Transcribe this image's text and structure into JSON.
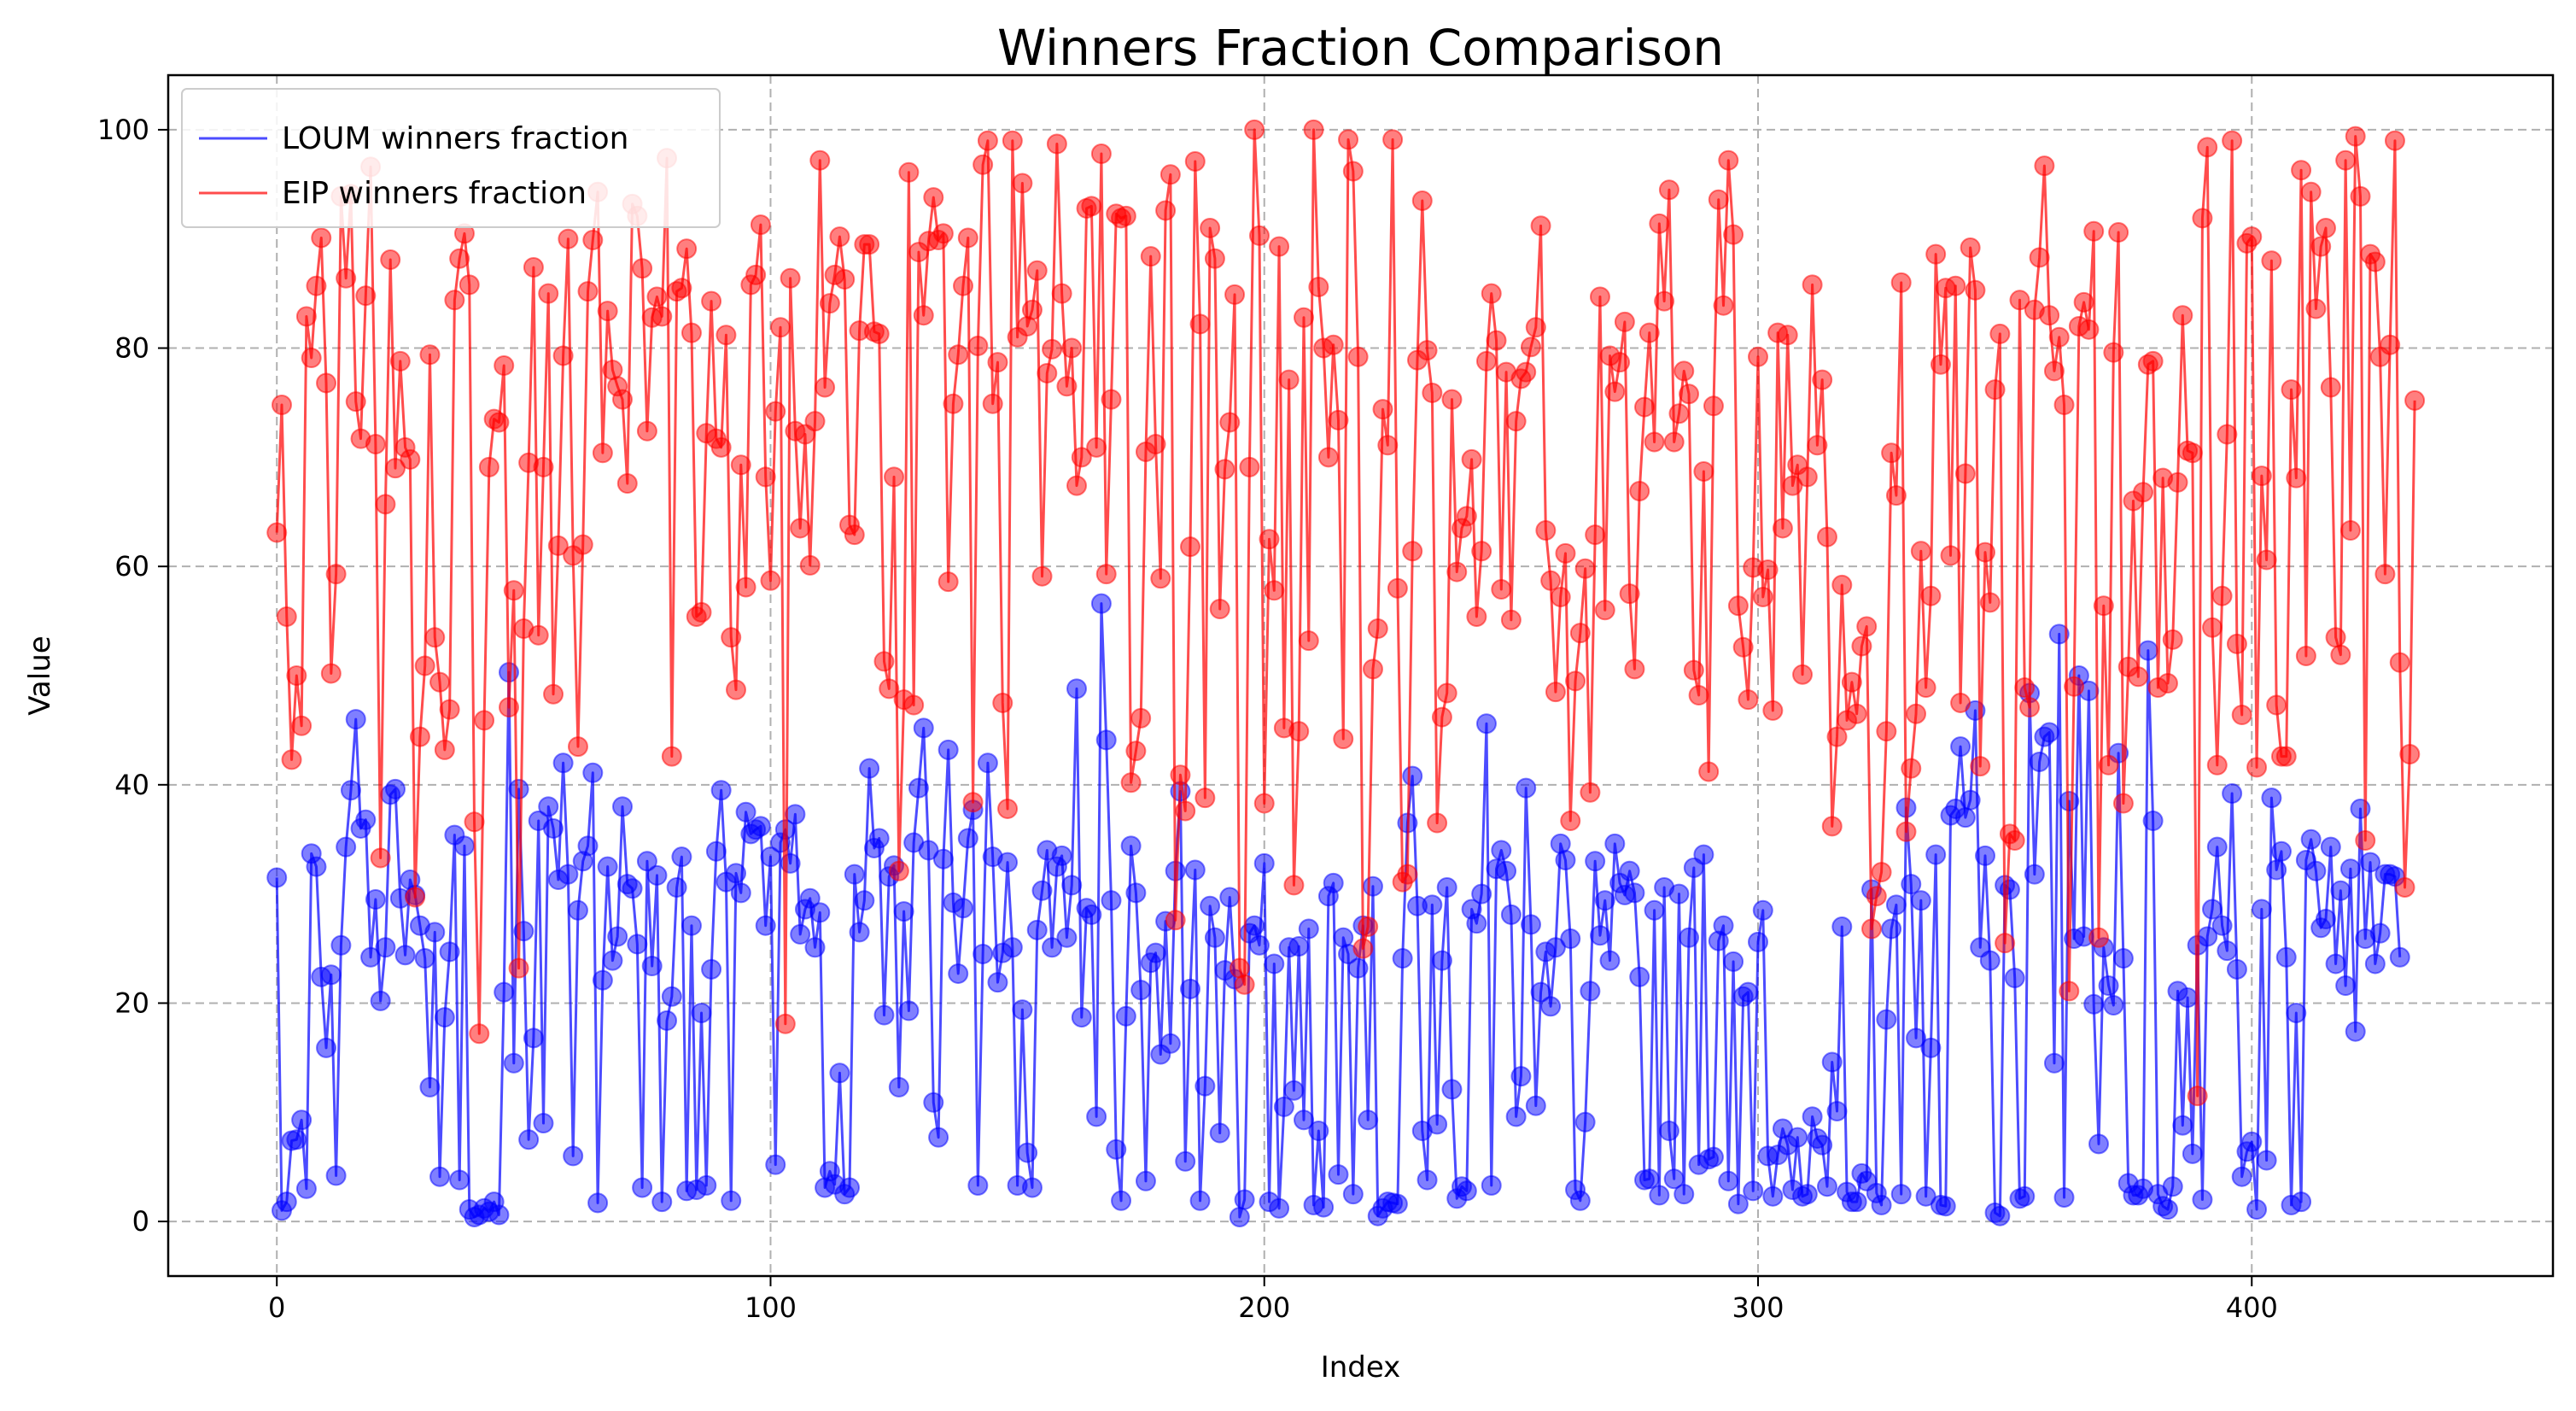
{
  "chart_data": {
    "type": "line",
    "title": "Winners Fraction Comparison",
    "xlabel": "Index",
    "ylabel": "Value",
    "xlim": [
      -22,
      461
    ],
    "ylim": [
      -5,
      105
    ],
    "xticks": [
      0,
      100,
      200,
      300,
      400
    ],
    "yticks": [
      0,
      20,
      40,
      60,
      80,
      100
    ],
    "grid": true,
    "legend_position": "top-left",
    "series": [
      {
        "name": "LOUM winners fraction",
        "color": "#0000ff",
        "marker": "circle",
        "values": [
          31.5,
          1.0,
          1.8,
          7.4,
          7.5,
          9.3,
          3.0,
          33.7,
          32.5,
          22.4,
          15.9,
          22.6,
          4.2,
          25.3,
          34.3,
          39.5,
          46.0,
          36.0,
          36.8,
          24.2,
          29.5,
          20.2,
          25.1,
          39.1,
          39.6,
          29.6,
          24.4,
          31.3,
          29.9,
          27.1,
          24.1,
          12.3,
          26.5,
          4.1,
          18.7,
          24.7,
          35.4,
          3.8,
          34.4,
          1.1,
          0.4,
          0.6,
          1.2,
          0.9,
          1.8,
          0.6,
          21.0,
          50.3,
          14.5,
          39.6,
          26.6,
          7.5,
          16.8,
          36.7,
          9.0,
          38.0,
          36.0,
          31.3,
          42.0,
          31.8,
          6.0,
          28.5,
          33.0,
          34.4,
          41.1,
          1.7,
          22.1,
          32.5,
          23.9,
          26.1,
          38.0,
          30.9,
          30.5,
          25.4,
          3.1,
          33.0,
          23.4,
          31.7,
          1.8,
          18.4,
          20.6,
          30.6,
          33.4,
          2.8,
          27.1,
          2.9,
          19.1,
          3.3,
          23.1,
          33.9,
          39.5,
          31.1,
          1.9,
          31.9,
          30.1,
          37.5,
          35.5,
          35.9,
          36.2,
          27.1,
          33.4,
          5.2,
          34.7,
          35.9,
          32.8,
          37.3,
          26.3,
          28.6,
          29.6,
          25.1,
          28.3,
          3.1,
          4.6,
          3.4,
          13.6,
          2.5,
          3.1,
          31.8,
          26.5,
          29.4,
          41.5,
          34.2,
          35.1,
          18.9,
          31.6,
          32.6,
          12.3,
          28.4,
          19.3,
          34.7,
          39.7,
          45.2,
          34.0,
          10.9,
          7.7,
          33.2,
          43.2,
          29.2,
          22.7,
          28.7,
          35.1,
          37.7,
          3.3,
          24.5,
          42.0,
          33.4,
          21.9,
          24.6,
          32.9,
          25.1,
          3.3,
          19.4,
          6.3,
          3.1,
          26.7,
          30.3,
          34.0,
          25.1,
          32.5,
          33.5,
          26.0,
          30.8,
          48.8,
          18.7,
          28.7,
          28.1,
          9.6,
          56.6,
          44.1,
          29.4,
          6.6,
          1.9,
          18.8,
          34.4,
          30.1,
          21.2,
          3.7,
          23.7,
          24.6,
          15.3,
          27.5,
          16.3,
          32.1,
          39.4,
          5.5,
          21.3,
          32.2,
          1.9,
          12.4,
          28.9,
          26.0,
          8.1,
          23.0,
          29.7,
          22.2,
          0.4,
          2.0,
          26.4,
          27.1,
          25.3,
          32.8,
          1.8,
          23.6,
          1.2,
          10.5,
          25.1,
          12.0,
          25.2,
          9.3,
          26.8,
          1.5,
          8.3,
          1.3,
          29.8,
          31.0,
          4.3,
          26.0,
          24.5,
          2.5,
          23.2,
          27.1,
          9.3,
          30.7,
          0.5,
          1.2,
          1.8,
          1.7,
          1.6,
          24.1,
          36.5,
          40.8,
          28.9,
          8.3,
          3.8,
          29.0,
          8.9,
          23.9,
          30.6,
          12.1,
          2.1,
          3.2,
          2.8,
          28.6,
          27.3,
          30.0,
          45.6,
          3.3,
          32.3,
          34.0,
          32.1,
          28.1,
          9.6,
          13.3,
          39.7,
          27.2,
          10.6,
          21.0,
          24.7,
          19.7,
          25.1,
          34.6,
          33.1,
          25.9,
          2.9,
          1.9,
          9.1,
          21.1,
          33.0,
          26.2,
          29.4,
          23.9,
          34.6,
          31.0,
          29.9,
          32.1,
          30.1,
          22.4,
          3.8,
          3.9,
          28.5,
          2.4,
          30.6,
          8.3,
          3.9,
          30.0,
          2.5,
          26.0,
          32.4,
          5.2,
          33.6,
          5.7,
          5.9,
          25.7,
          27.1,
          3.7,
          23.8,
          1.6,
          20.6,
          21.0,
          2.8,
          25.6,
          28.5,
          6.0,
          2.3,
          6.1,
          8.5,
          7.0,
          2.9,
          7.7,
          2.3,
          2.5,
          9.6,
          7.6,
          7.0,
          3.2,
          14.6,
          10.1,
          27.0,
          2.7,
          1.8,
          1.8,
          4.4,
          3.7,
          30.4,
          2.6,
          1.5,
          18.5,
          26.8,
          29.0,
          2.5,
          37.9,
          30.9,
          16.8,
          29.4,
          2.3,
          15.9,
          33.6,
          1.5,
          1.4,
          37.2,
          37.8,
          43.5,
          37.0,
          38.6,
          46.8,
          25.1,
          33.5,
          23.9,
          0.8,
          0.5,
          30.8,
          30.4,
          22.3,
          2.1,
          2.3,
          48.4,
          31.8,
          42.1,
          44.4,
          44.8,
          14.5,
          53.8,
          2.2,
          38.5,
          25.9,
          50.0,
          26.1,
          48.6,
          19.9,
          7.1,
          25.1,
          21.6,
          19.8,
          42.9,
          24.1,
          3.5,
          2.4,
          2.4,
          3.0,
          52.3,
          36.7,
          2.5,
          1.4,
          1.1,
          3.2,
          21.1,
          8.8,
          20.5,
          6.2,
          25.3,
          2.0,
          26.1,
          28.6,
          34.3,
          27.1,
          24.8,
          39.2,
          23.1,
          4.1,
          6.4,
          7.3,
          1.1,
          28.6,
          5.6,
          38.8,
          32.2,
          33.9,
          24.2,
          1.5,
          19.1,
          1.8,
          33.1,
          35.0,
          32.1,
          26.9,
          27.7,
          34.3,
          23.6,
          30.3,
          21.6,
          32.3,
          17.4,
          37.8,
          25.9,
          32.9,
          23.6,
          26.4,
          31.8,
          31.8,
          31.6,
          24.2
        ]
      },
      {
        "name": "EIP winners fraction",
        "color": "#ff0000",
        "marker": "circle",
        "values": [
          63.1,
          74.8,
          55.4,
          42.3,
          50.0,
          45.4,
          82.9,
          79.1,
          85.7,
          90.1,
          76.8,
          50.2,
          59.3,
          93.9,
          86.4,
          94.1,
          75.1,
          71.7,
          84.8,
          96.6,
          71.2,
          33.3,
          65.7,
          88.1,
          69.0,
          78.8,
          70.9,
          69.8,
          29.7,
          44.4,
          50.9,
          79.4,
          53.5,
          49.4,
          43.2,
          46.9,
          84.4,
          88.2,
          90.5,
          85.8,
          36.6,
          17.2,
          45.9,
          69.1,
          73.5,
          73.2,
          78.4,
          47.1,
          57.8,
          23.2,
          54.3,
          69.5,
          87.4,
          53.7,
          69.1,
          85.0,
          48.3,
          61.9,
          79.3,
          90.0,
          61.0,
          43.5,
          62.0,
          85.2,
          89.9,
          94.3,
          70.4,
          83.4,
          78.0,
          76.5,
          75.3,
          67.6,
          93.2,
          92.1,
          87.3,
          72.4,
          82.8,
          84.7,
          82.9,
          97.4,
          42.6,
          85.2,
          85.5,
          89.1,
          81.4,
          55.4,
          55.8,
          72.2,
          84.3,
          71.7,
          70.9,
          81.2,
          53.5,
          48.7,
          69.3,
          58.1,
          85.8,
          86.7,
          91.3,
          68.2,
          58.7,
          74.2,
          81.9,
          18.1,
          86.4,
          72.4,
          63.5,
          72.1,
          60.1,
          73.3,
          97.2,
          76.4,
          84.1,
          86.7,
          90.2,
          86.3,
          63.8,
          62.9,
          81.6,
          89.5,
          89.5,
          81.5,
          81.3,
          51.3,
          48.8,
          68.2,
          32.1,
          47.8,
          96.1,
          47.3,
          88.8,
          83.0,
          89.8,
          93.8,
          89.9,
          90.5,
          58.6,
          74.9,
          79.4,
          85.7,
          90.1,
          38.4,
          80.2,
          96.8,
          99.0,
          74.9,
          78.7,
          47.5,
          37.8,
          99.0,
          81.0,
          95.1,
          82.0,
          83.5,
          87.1,
          59.1,
          77.7,
          79.9,
          98.7,
          85.0,
          76.5,
          80.0,
          67.4,
          70.0,
          92.8,
          93.0,
          70.9,
          97.8,
          59.3,
          75.3,
          92.3,
          91.9,
          92.1,
          40.2,
          43.1,
          46.1,
          70.5,
          88.4,
          71.2,
          58.9,
          92.6,
          95.9,
          27.6,
          40.9,
          37.6,
          61.8,
          97.1,
          82.2,
          38.8,
          91.0,
          88.2,
          56.1,
          68.9,
          73.2,
          84.9,
          23.2,
          21.7,
          69.1,
          100.0,
          90.3,
          38.3,
          62.5,
          57.8,
          89.3,
          45.2,
          77.1,
          30.8,
          44.9,
          82.8,
          53.2,
          100.0,
          85.6,
          80.0,
          70.0,
          80.3,
          73.4,
          44.2,
          99.1,
          96.2,
          79.2,
          25.0,
          27.0,
          50.6,
          54.3,
          74.4,
          71.1,
          99.1,
          58.0,
          31.1,
          31.8,
          61.4,
          78.9,
          93.5,
          79.8,
          75.9,
          36.5,
          46.2,
          48.4,
          75.3,
          59.5,
          63.5,
          64.6,
          69.8,
          55.4,
          61.4,
          78.8,
          85.0,
          80.7,
          57.9,
          77.8,
          55.1,
          73.3,
          77.2,
          77.8,
          80.1,
          81.9,
          91.2,
          63.3,
          58.7,
          48.5,
          57.2,
          61.2,
          36.7,
          49.5,
          53.9,
          59.8,
          39.3,
          62.9,
          84.7,
          56.0,
          79.3,
          76.0,
          78.7,
          82.4,
          57.5,
          50.6,
          66.9,
          74.6,
          81.4,
          71.4,
          91.4,
          84.3,
          94.5,
          71.4,
          74.0,
          77.9,
          75.8,
          50.5,
          48.2,
          68.7,
          41.2,
          74.7,
          93.6,
          83.9,
          97.2,
          90.4,
          56.4,
          52.6,
          47.8,
          59.9,
          79.2,
          57.2,
          59.7,
          46.8,
          81.4,
          63.5,
          81.2,
          67.4,
          69.3,
          50.1,
          68.2,
          85.8,
          71.1,
          77.1,
          62.7,
          36.2,
          44.4,
          58.3,
          45.9,
          49.4,
          46.5,
          52.7,
          54.5,
          26.8,
          29.8,
          32.0,
          44.9,
          70.4,
          66.5,
          86.0,
          35.7,
          41.5,
          46.5,
          61.4,
          48.9,
          57.3,
          88.6,
          78.5,
          85.5,
          61.0,
          85.7,
          47.5,
          68.5,
          89.2,
          85.3,
          41.7,
          61.3,
          56.7,
          76.2,
          81.3,
          25.5,
          35.5,
          34.9,
          84.4,
          48.9,
          47.1,
          83.5,
          88.3,
          96.7,
          83.0,
          77.9,
          81.0,
          74.8,
          21.1,
          49.0,
          82.0,
          84.2,
          81.7,
          90.7,
          26.0,
          56.4,
          41.8,
          79.6,
          90.6,
          38.3,
          50.8,
          66.0,
          49.9,
          66.8,
          78.5,
          78.8,
          48.9,
          68.1,
          49.3,
          53.3,
          67.7,
          83.0,
          70.6,
          70.4,
          11.5,
          91.9,
          98.4,
          54.4,
          41.8,
          57.3,
          72.1,
          99.0,
          52.9,
          46.4,
          89.6,
          90.2,
          41.6,
          68.3,
          60.6,
          88.0,
          47.3,
          42.6,
          42.6,
          76.2,
          68.1,
          96.3,
          51.8,
          94.3,
          83.6,
          89.3,
          91.0,
          76.4,
          53.5,
          51.9,
          97.2,
          63.3,
          99.4,
          93.9,
          34.9,
          88.6,
          87.9,
          79.2,
          59.3,
          80.3,
          99.0,
          51.2,
          30.6,
          42.8,
          75.2
        ]
      }
    ]
  }
}
